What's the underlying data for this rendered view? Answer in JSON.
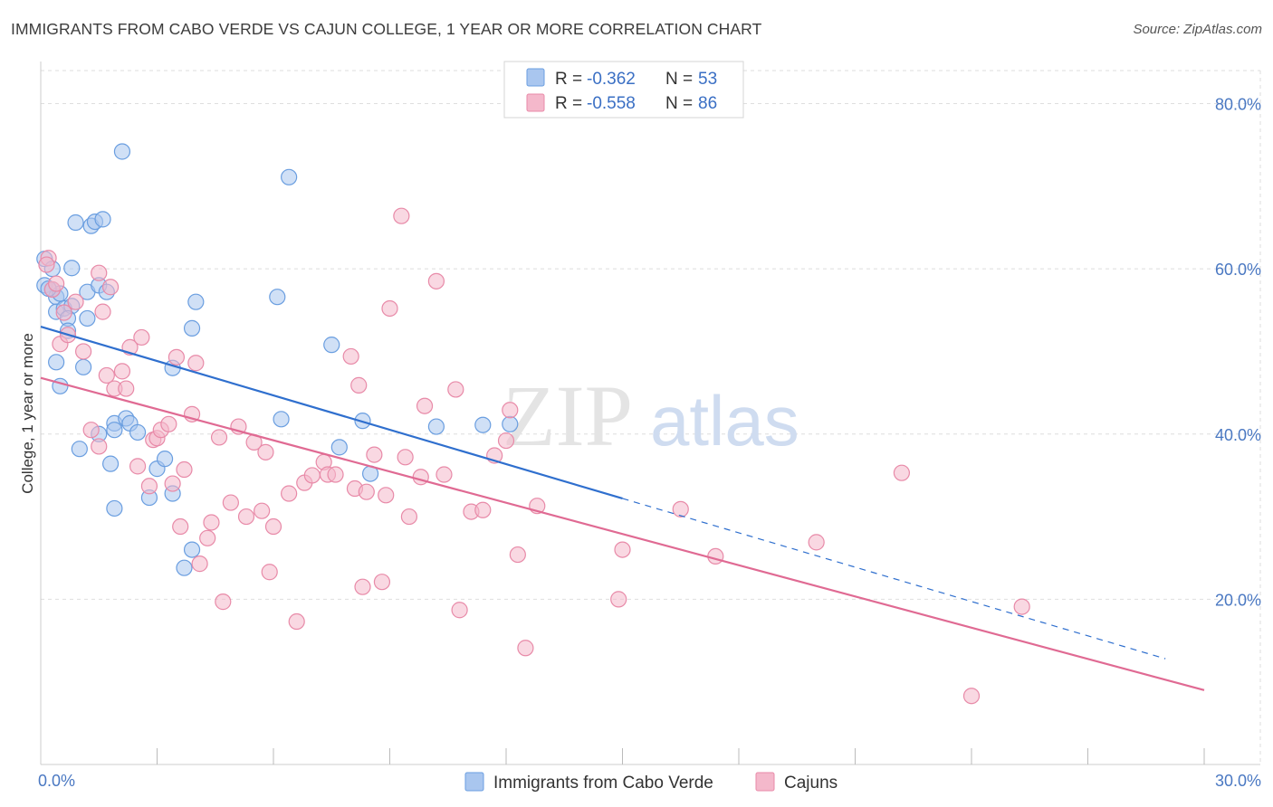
{
  "title": "IMMIGRANTS FROM CABO VERDE VS CAJUN COLLEGE, 1 YEAR OR MORE CORRELATION CHART",
  "source": "Source: ZipAtlas.com",
  "watermark": {
    "zip": "ZIP",
    "atlas": "atlas"
  },
  "colors": {
    "blue_fill": "#a9c6ef",
    "blue_stroke": "#6a9ee0",
    "blue_line": "#2f6fce",
    "pink_fill": "#f4b8cb",
    "pink_stroke": "#e88aa8",
    "pink_line": "#e06a93",
    "tick_text": "#4a78c2",
    "grid": "#dedede"
  },
  "legend": {
    "rows": [
      {
        "r_label": "R = ",
        "r_value": "-0.362",
        "n_label": "N = ",
        "n_value": "53"
      },
      {
        "r_label": "R = ",
        "r_value": "-0.558",
        "n_label": "N = ",
        "n_value": "86"
      }
    ]
  },
  "chart_data": {
    "type": "scatter",
    "title": "IMMIGRANTS FROM CABO VERDE VS CAJUN COLLEGE, 1 YEAR OR MORE CORRELATION CHART",
    "xlabel": "",
    "ylabel": "College, 1 year or more",
    "xlim": [
      0,
      30
    ],
    "ylim": [
      0,
      84
    ],
    "x_ticks": [
      {
        "value": 0,
        "label": "0.0%"
      },
      {
        "value": 30,
        "label": "30.0%"
      }
    ],
    "y_ticks": [
      {
        "value": 20,
        "label": "20.0%"
      },
      {
        "value": 40,
        "label": "40.0%"
      },
      {
        "value": 60,
        "label": "60.0%"
      },
      {
        "value": 80,
        "label": "80.0%"
      }
    ],
    "grid": true,
    "legend_position": "top-center",
    "series": [
      {
        "name": "Immigrants from Cabo Verde",
        "color": "blue",
        "trend": {
          "x0": 0,
          "y0": 53.0,
          "x1": 15,
          "y1": 32.2,
          "dash_to_x": 29.0,
          "dash_to_y": 12.8
        },
        "points": [
          [
            0.1,
            61.2
          ],
          [
            0.1,
            58.0
          ],
          [
            0.3,
            57.5
          ],
          [
            0.4,
            56.6
          ],
          [
            0.5,
            57.0
          ],
          [
            0.4,
            54.8
          ],
          [
            0.6,
            55.2
          ],
          [
            0.8,
            55.5
          ],
          [
            0.7,
            54.0
          ],
          [
            0.4,
            48.7
          ],
          [
            0.5,
            45.8
          ],
          [
            0.7,
            52.5
          ],
          [
            0.8,
            60.1
          ],
          [
            1.0,
            38.2
          ],
          [
            1.1,
            48.1
          ],
          [
            1.2,
            57.2
          ],
          [
            1.2,
            54.0
          ],
          [
            0.9,
            65.6
          ],
          [
            1.3,
            65.2
          ],
          [
            1.4,
            65.7
          ],
          [
            1.6,
            66.0
          ],
          [
            1.5,
            58.0
          ],
          [
            1.7,
            57.2
          ],
          [
            1.5,
            40.0
          ],
          [
            1.8,
            36.4
          ],
          [
            1.9,
            31.0
          ],
          [
            1.9,
            41.3
          ],
          [
            1.9,
            40.5
          ],
          [
            2.2,
            41.9
          ],
          [
            2.3,
            41.3
          ],
          [
            2.5,
            40.2
          ],
          [
            2.1,
            74.2
          ],
          [
            2.8,
            32.3
          ],
          [
            3.0,
            35.8
          ],
          [
            3.2,
            37.0
          ],
          [
            3.4,
            32.8
          ],
          [
            3.4,
            48.0
          ],
          [
            3.7,
            23.8
          ],
          [
            3.9,
            26.0
          ],
          [
            3.9,
            52.8
          ],
          [
            4.0,
            56.0
          ],
          [
            6.1,
            56.6
          ],
          [
            6.2,
            41.8
          ],
          [
            6.4,
            71.1
          ],
          [
            7.5,
            50.8
          ],
          [
            7.7,
            38.4
          ],
          [
            8.3,
            41.6
          ],
          [
            8.5,
            35.2
          ],
          [
            10.2,
            40.9
          ],
          [
            11.4,
            41.1
          ],
          [
            12.1,
            41.2
          ],
          [
            0.3,
            60.0
          ],
          [
            0.2,
            57.6
          ]
        ]
      },
      {
        "name": "Cajuns",
        "color": "pink",
        "trend": {
          "x0": 0,
          "y0": 46.8,
          "x1": 30,
          "y1": 9.0
        },
        "points": [
          [
            0.2,
            61.3
          ],
          [
            0.3,
            57.5
          ],
          [
            0.4,
            58.2
          ],
          [
            0.5,
            50.9
          ],
          [
            0.6,
            54.7
          ],
          [
            0.7,
            52.0
          ],
          [
            0.9,
            56.0
          ],
          [
            1.1,
            50.0
          ],
          [
            1.3,
            40.5
          ],
          [
            1.5,
            38.5
          ],
          [
            1.5,
            59.5
          ],
          [
            1.6,
            54.8
          ],
          [
            1.7,
            47.1
          ],
          [
            1.8,
            57.8
          ],
          [
            1.9,
            45.5
          ],
          [
            2.1,
            47.6
          ],
          [
            2.2,
            45.5
          ],
          [
            2.3,
            50.5
          ],
          [
            2.5,
            36.1
          ],
          [
            2.6,
            51.7
          ],
          [
            2.8,
            33.7
          ],
          [
            2.9,
            39.3
          ],
          [
            3.0,
            39.5
          ],
          [
            3.1,
            40.5
          ],
          [
            3.3,
            41.2
          ],
          [
            3.4,
            34.0
          ],
          [
            3.5,
            49.3
          ],
          [
            3.6,
            28.8
          ],
          [
            3.7,
            35.7
          ],
          [
            3.9,
            42.4
          ],
          [
            4.0,
            48.6
          ],
          [
            4.1,
            24.3
          ],
          [
            4.3,
            27.4
          ],
          [
            4.4,
            29.3
          ],
          [
            4.6,
            39.6
          ],
          [
            4.7,
            19.7
          ],
          [
            4.9,
            31.7
          ],
          [
            5.1,
            40.9
          ],
          [
            5.3,
            30.0
          ],
          [
            5.5,
            39.0
          ],
          [
            5.7,
            30.7
          ],
          [
            5.8,
            37.8
          ],
          [
            5.9,
            23.3
          ],
          [
            6.0,
            28.8
          ],
          [
            6.4,
            32.8
          ],
          [
            6.6,
            17.3
          ],
          [
            6.8,
            34.1
          ],
          [
            7.0,
            35.0
          ],
          [
            7.3,
            36.6
          ],
          [
            7.4,
            35.1
          ],
          [
            7.6,
            35.1
          ],
          [
            8.0,
            49.4
          ],
          [
            8.1,
            33.4
          ],
          [
            8.2,
            45.9
          ],
          [
            8.3,
            21.5
          ],
          [
            8.4,
            33.0
          ],
          [
            8.6,
            37.5
          ],
          [
            8.8,
            22.1
          ],
          [
            8.9,
            32.6
          ],
          [
            9.0,
            55.2
          ],
          [
            9.3,
            66.4
          ],
          [
            9.4,
            37.2
          ],
          [
            9.5,
            30.0
          ],
          [
            9.8,
            34.8
          ],
          [
            9.9,
            43.4
          ],
          [
            10.2,
            58.5
          ],
          [
            10.4,
            35.1
          ],
          [
            10.7,
            45.4
          ],
          [
            10.8,
            18.7
          ],
          [
            11.1,
            30.6
          ],
          [
            11.4,
            30.8
          ],
          [
            11.7,
            37.4
          ],
          [
            12.0,
            39.2
          ],
          [
            12.1,
            42.9
          ],
          [
            12.3,
            25.4
          ],
          [
            12.5,
            14.1
          ],
          [
            12.8,
            31.3
          ],
          [
            14.9,
            20.0
          ],
          [
            15.0,
            26.0
          ],
          [
            16.5,
            30.9
          ],
          [
            17.4,
            25.2
          ],
          [
            20.0,
            26.9
          ],
          [
            22.2,
            35.3
          ],
          [
            25.3,
            19.1
          ],
          [
            24.0,
            8.3
          ],
          [
            0.15,
            60.5
          ]
        ]
      }
    ]
  },
  "bottom_legend": [
    {
      "label": "Immigrants from Cabo Verde",
      "color": "blue"
    },
    {
      "label": "Cajuns",
      "color": "pink"
    }
  ]
}
